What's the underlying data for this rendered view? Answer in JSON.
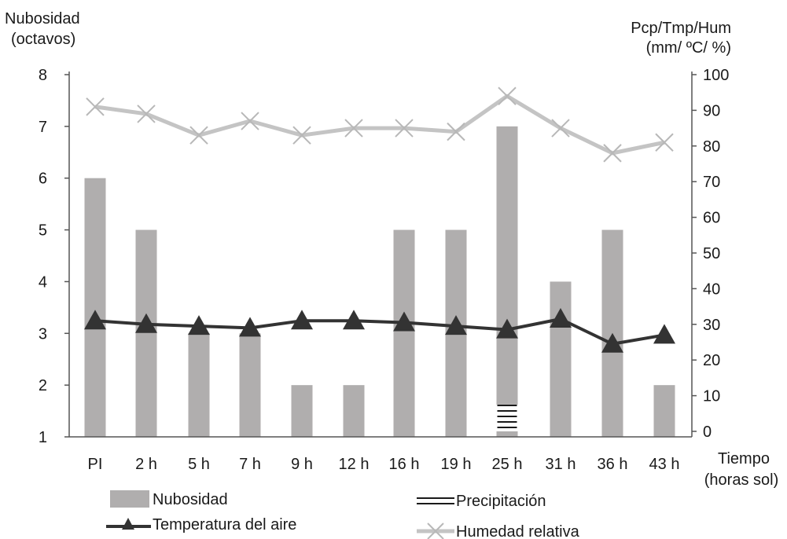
{
  "chart_data": {
    "type": "bar+line",
    "categories": [
      "PI",
      "2 h",
      "5 h",
      "7 h",
      "9 h",
      "12 h",
      "16 h",
      "19 h",
      "25 h",
      "31 h",
      "36 h",
      "43 h"
    ],
    "left_axis": {
      "label_line1": "Nubosidad",
      "label_line2": "(octavos)",
      "ylim": [
        1,
        8
      ],
      "ticks": [
        "1",
        "2",
        "3",
        "4",
        "5",
        "6",
        "7",
        "8"
      ]
    },
    "right_axis": {
      "label_line1": "Pcp/Tmp/Hum",
      "label_line2": "(mm/ ºC/ %)",
      "ylim": [
        0,
        100
      ],
      "ticks": [
        "0",
        "10",
        "20",
        "30",
        "40",
        "50",
        "60",
        "70",
        "80",
        "90",
        "100"
      ]
    },
    "x_axis": {
      "label_line1": "Tiempo",
      "label_line2": "(horas sol)"
    },
    "series": [
      {
        "name": "Nubosidad",
        "type": "bar",
        "axis": "left",
        "color": "#b0aeae",
        "values": [
          6,
          5,
          3,
          3,
          2,
          2,
          5,
          5,
          7,
          4,
          5,
          2
        ]
      },
      {
        "name": "Precipitación",
        "type": "bar-hatched",
        "axis": "right",
        "color": "#1a1a1a",
        "values": [
          0,
          0,
          0,
          0,
          0,
          0,
          0,
          0,
          7.5,
          0,
          0,
          0
        ]
      },
      {
        "name": "Temperatura del aire",
        "type": "line",
        "marker": "triangle",
        "axis": "right",
        "color": "#333333",
        "values": [
          31,
          30,
          29.5,
          29,
          31,
          31,
          30.5,
          29.5,
          28.5,
          31.5,
          24.5,
          27
        ]
      },
      {
        "name": "Humedad relativa",
        "type": "line",
        "marker": "x",
        "axis": "right",
        "color": "#c4c4c4",
        "values": [
          91,
          89,
          83,
          87,
          83,
          85,
          85,
          84,
          94,
          85,
          78,
          81
        ]
      }
    ],
    "legend_position": "bottom"
  }
}
